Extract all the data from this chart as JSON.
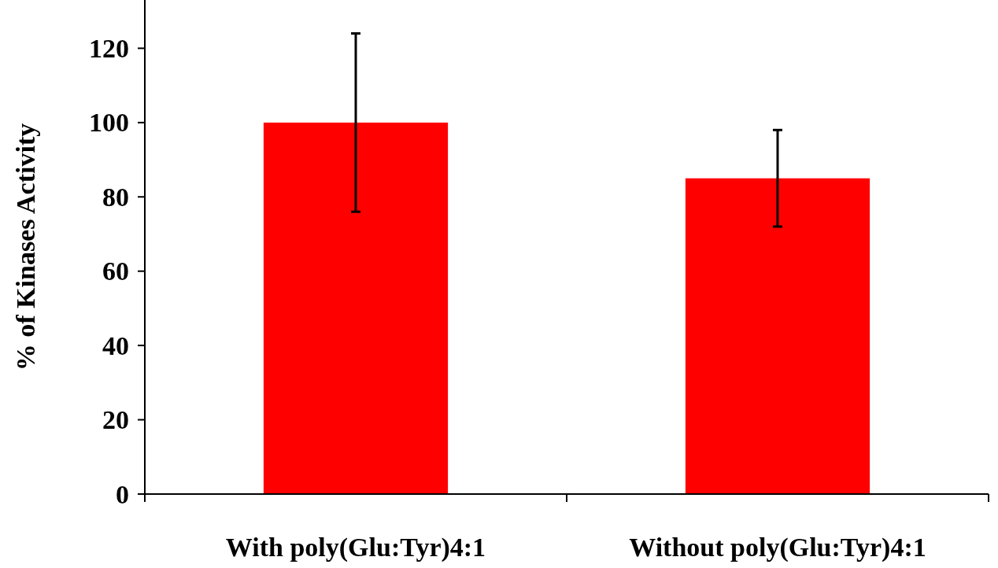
{
  "chart_data": {
    "type": "bar",
    "ylabel": "% of Kinases Activity",
    "categories": [
      "With poly(Glu:Tyr)4:1",
      "Without poly(Glu:Tyr)4:1"
    ],
    "values": [
      100,
      85
    ],
    "errors": [
      24,
      13
    ],
    "color": "#ff0000",
    "ylim": [
      0,
      133
    ],
    "yticks": [
      0,
      20,
      40,
      60,
      80,
      100,
      120
    ],
    "grid": false
  }
}
